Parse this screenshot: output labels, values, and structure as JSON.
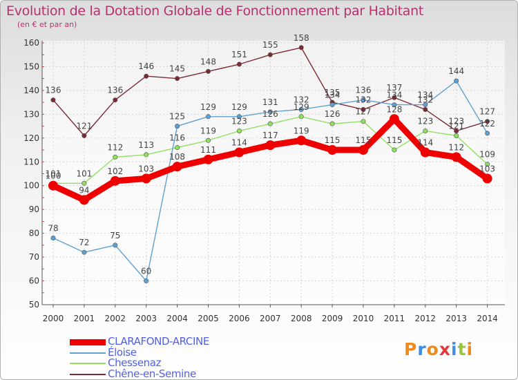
{
  "title": "Evolution de la Dotation Globale de Fonctionnement par Habitant",
  "subtitle": "(en € et par an)",
  "logo": {
    "text": "Proxiti",
    "colors": [
      "#f08a1a",
      "#3a8ee6",
      "#f08a1a",
      "#e43a3a",
      "#3a8ee6",
      "#9ac53a",
      "#f08a1a"
    ]
  },
  "chart_data": {
    "type": "line",
    "title": "Evolution de la Dotation Globale de Fonctionnement par Habitant",
    "ylabel": "(en € et par an)",
    "categories": [
      "2000",
      "2001",
      "2002",
      "2003",
      "2004",
      "2005",
      "2006",
      "2007",
      "2008",
      "2009",
      "2010",
      "2011",
      "2012",
      "2013",
      "2014"
    ],
    "ylim": [
      50,
      160
    ],
    "yticks": [
      50,
      60,
      70,
      80,
      90,
      100,
      110,
      120,
      130,
      140,
      150,
      160
    ],
    "series": [
      {
        "name": "CLARAFOND-ARCINE",
        "color": "#ee0000",
        "values": [
          100,
          94,
          102,
          103,
          108,
          111,
          114,
          117,
          119,
          115,
          115,
          128,
          114,
          112,
          103
        ],
        "labels": [
          "100",
          "94",
          "102",
          "103",
          "108",
          "111",
          "114",
          "117",
          "119",
          "115",
          "115",
          "128",
          "114",
          "112",
          "103"
        ]
      },
      {
        "name": "Éloise",
        "color": "#5fa0d0",
        "values": [
          78,
          72,
          75,
          60,
          125,
          129,
          129,
          131,
          132,
          134,
          136,
          134,
          134,
          144,
          122
        ],
        "labels": [
          "78",
          "72",
          "75",
          "60",
          "125",
          "129",
          "129",
          "131",
          "132",
          "134",
          "136",
          "134",
          "134",
          "144",
          "122"
        ]
      },
      {
        "name": "Chessenaz",
        "color": "#90e060",
        "values": [
          101,
          101,
          112,
          113,
          116,
          119,
          123,
          126,
          129,
          126,
          127,
          115,
          123,
          121,
          109
        ],
        "labels": [
          "101",
          "101",
          "112",
          "113",
          "116",
          "119",
          "123",
          "126",
          "129",
          "126",
          "127",
          "115",
          "123",
          "121",
          "109"
        ]
      },
      {
        "name": "Chêne-en-Semine",
        "color": "#7a2a35",
        "values": [
          136,
          121,
          136,
          146,
          145,
          148,
          151,
          155,
          158,
          135,
          132,
          137,
          132,
          123,
          127
        ],
        "labels": [
          "136",
          "121",
          "136",
          "146",
          "145",
          "148",
          "151",
          "155",
          "158",
          "135",
          "132",
          "137",
          "132",
          "123",
          "127"
        ]
      }
    ],
    "legend": {
      "position": "bottom-left"
    }
  }
}
